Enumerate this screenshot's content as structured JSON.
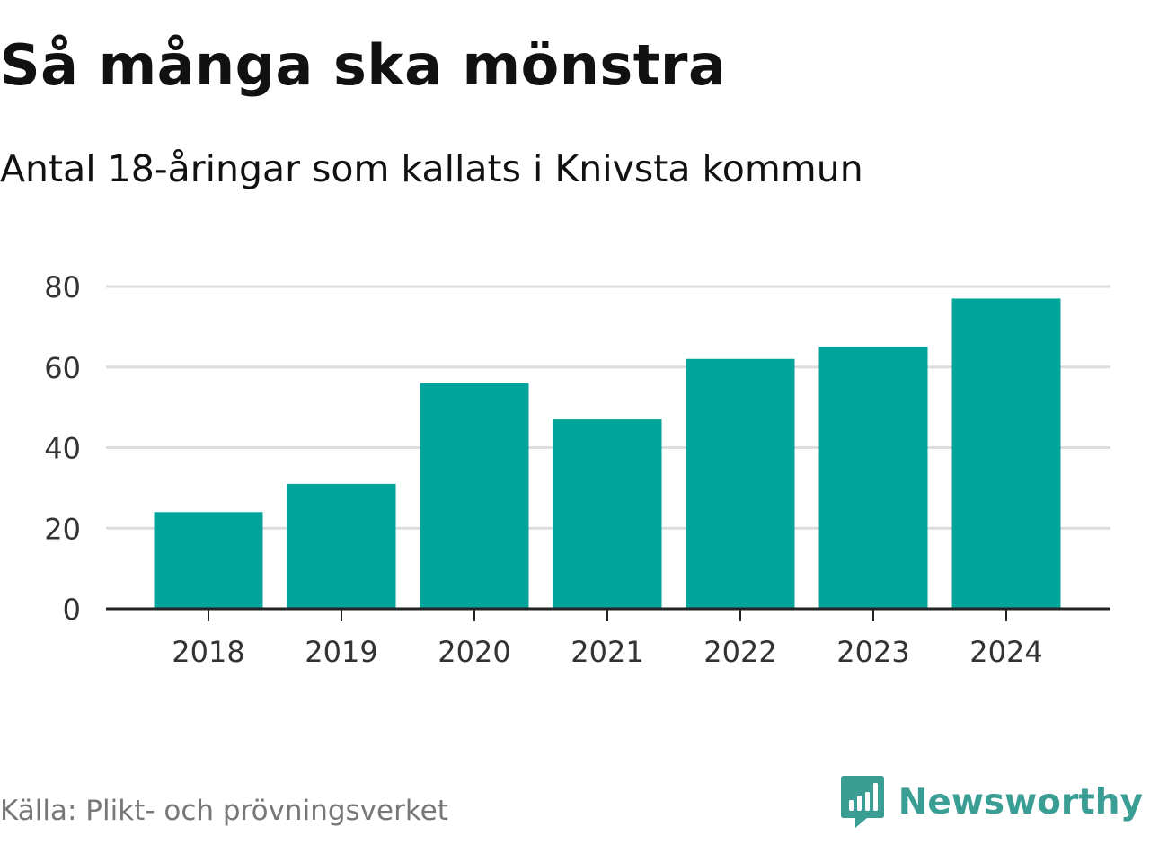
{
  "title": "Så många ska mönstra",
  "subtitle": "Antal 18-åringar som kallats i Knivsta kommun",
  "source": "Källa: Plikt- och prövningsverket",
  "brand": {
    "name": "Newsworthy",
    "icon": "newsworthy-logo-icon",
    "color": "#3a9e94"
  },
  "colors": {
    "bar": "#00a49a",
    "grid": "#dddddd",
    "axis": "#222222",
    "tick_text": "#333333"
  },
  "chart_data": {
    "type": "bar",
    "categories": [
      "2018",
      "2019",
      "2020",
      "2021",
      "2022",
      "2023",
      "2024"
    ],
    "values": [
      24,
      31,
      56,
      47,
      62,
      65,
      77
    ],
    "ylim": [
      0,
      80
    ],
    "yticks": [
      0,
      20,
      40,
      60,
      80
    ],
    "xlabel": "",
    "ylabel": "",
    "grid": true
  }
}
